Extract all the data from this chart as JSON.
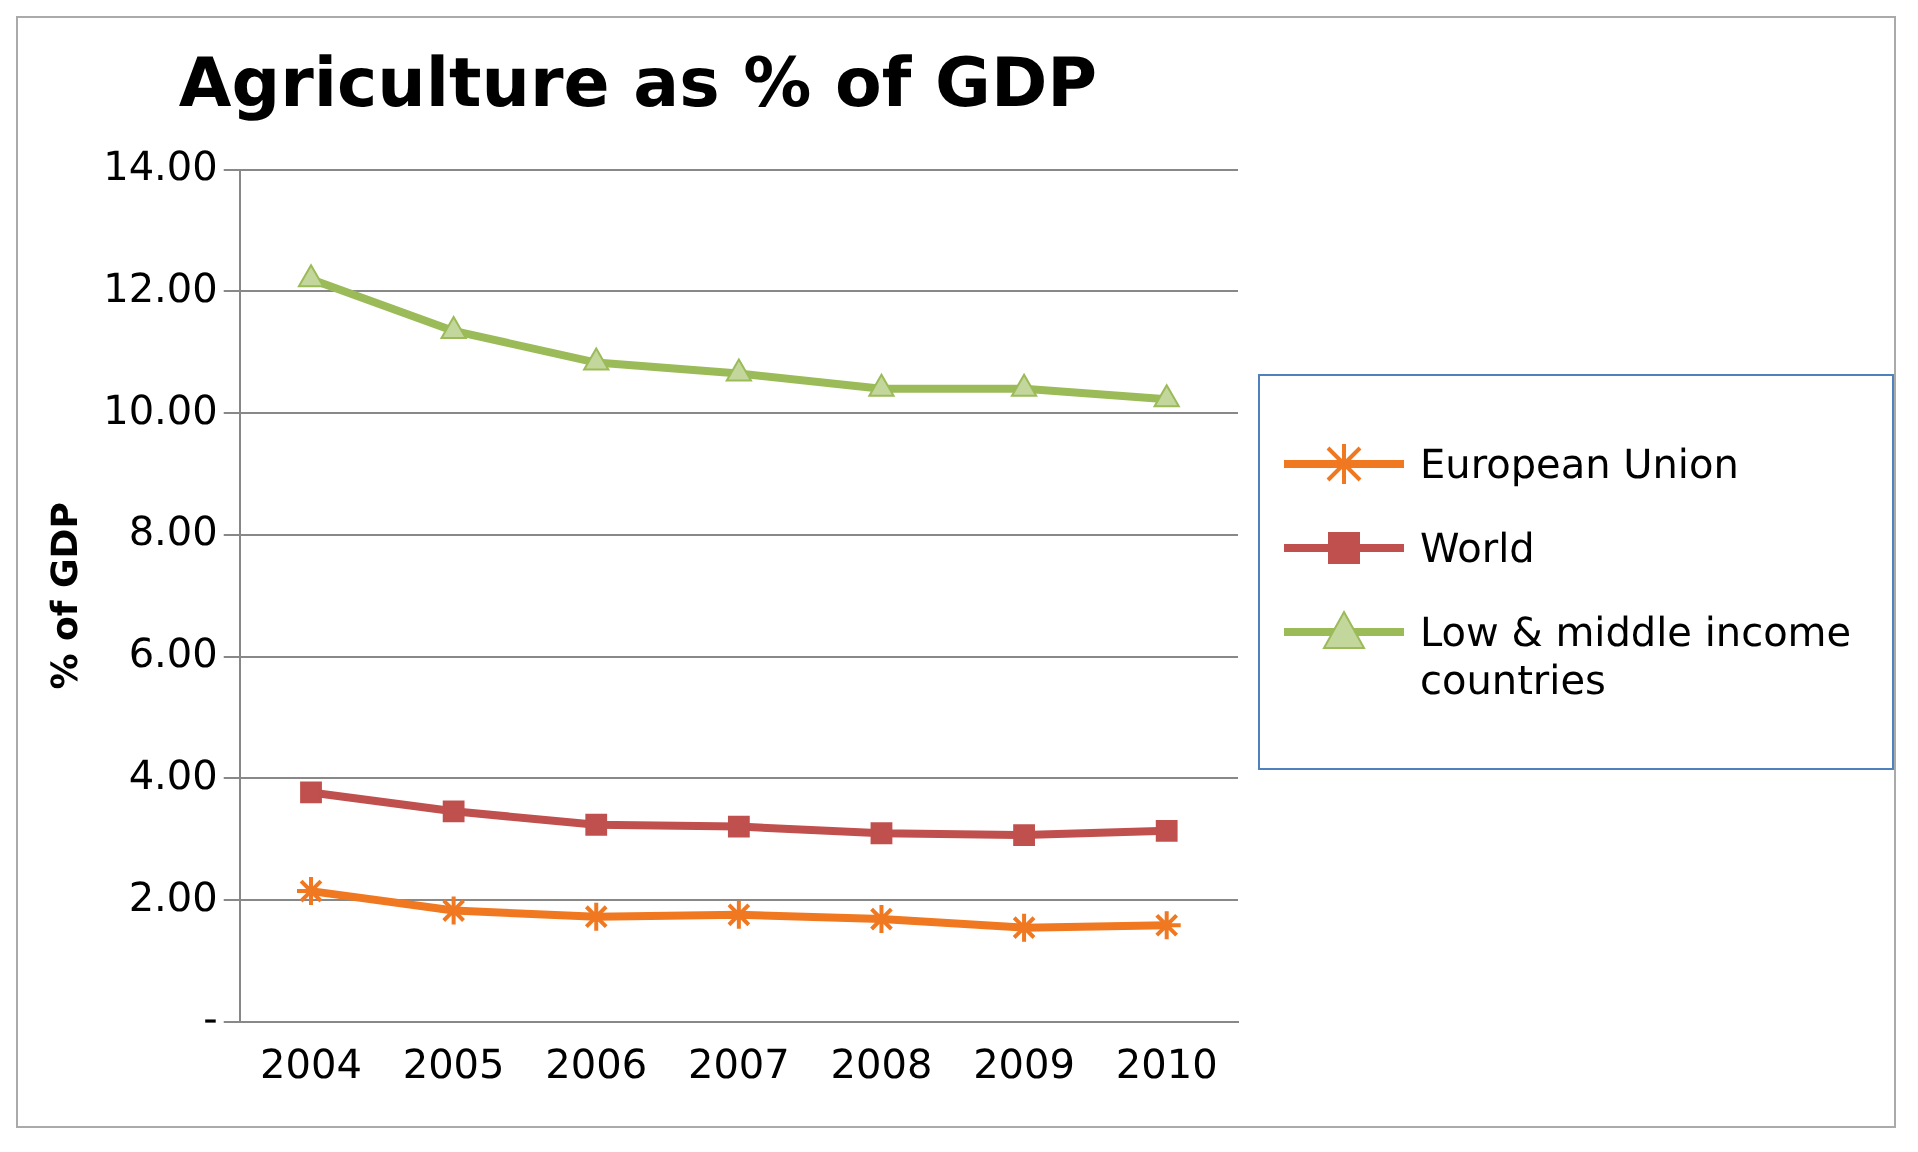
{
  "chart_data": {
    "type": "line",
    "title": "Agriculture as % of GDP",
    "ylabel": "% of GDP",
    "categories": [
      "2004",
      "2005",
      "2006",
      "2007",
      "2008",
      "2009",
      "2010"
    ],
    "series": [
      {
        "name": "European Union",
        "color": "#f07820",
        "marker": "cross",
        "values": [
          2.15,
          1.83,
          1.73,
          1.76,
          1.69,
          1.55,
          1.59
        ]
      },
      {
        "name": "World",
        "color": "#c0504d",
        "marker": "square",
        "values": [
          3.77,
          3.46,
          3.24,
          3.21,
          3.1,
          3.07,
          3.14
        ]
      },
      {
        "name": "Low & middle income countries",
        "color": "#9bbb59",
        "marker": "triangle",
        "values": [
          12.2,
          11.35,
          10.83,
          10.65,
          10.4,
          10.4,
          10.23
        ]
      }
    ],
    "ylim": [
      0,
      14
    ],
    "yticks": [
      {
        "value": 0,
        "label": "-"
      },
      {
        "value": 2,
        "label": "2.00"
      },
      {
        "value": 4,
        "label": "4.00"
      },
      {
        "value": 6,
        "label": "6.00"
      },
      {
        "value": 8,
        "label": "8.00"
      },
      {
        "value": 10,
        "label": "10.00"
      },
      {
        "value": 12,
        "label": "12.00"
      },
      {
        "value": 14,
        "label": "14.00"
      }
    ],
    "grid": "y",
    "legend": "right",
    "line_style": "solid"
  }
}
